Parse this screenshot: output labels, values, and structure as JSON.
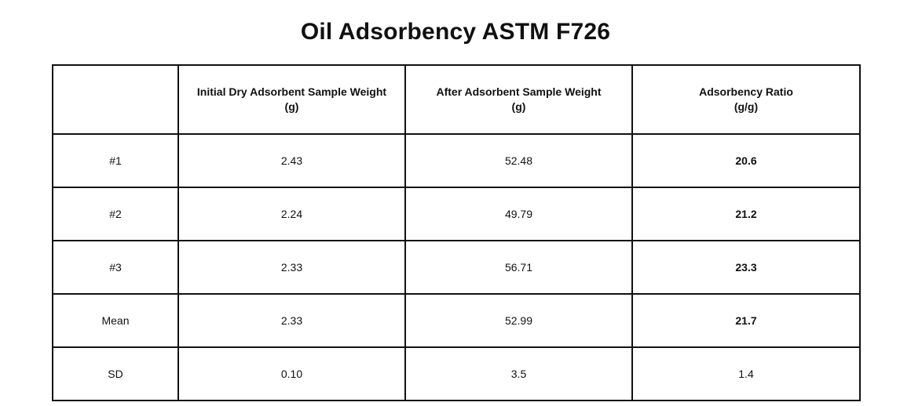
{
  "title": "Oil Adsorbency ASTM F726",
  "table": {
    "headers": [
      {
        "line1": "",
        "line2": ""
      },
      {
        "line1": "Initial Dry Adsorbent Sample Weight",
        "line2": "(g)"
      },
      {
        "line1": "After Adsorbent Sample Weight",
        "line2": "(g)"
      },
      {
        "line1": "Adsorbency Ratio",
        "line2": "(g/g)"
      }
    ],
    "rows": [
      {
        "label": "#1",
        "initial": "2.43",
        "after": "52.48",
        "ratio": "20.6"
      },
      {
        "label": "#2",
        "initial": "2.24",
        "after": "49.79",
        "ratio": "21.2"
      },
      {
        "label": "#3",
        "initial": "2.33",
        "after": "56.71",
        "ratio": "23.3"
      },
      {
        "label": "Mean",
        "initial": "2.33",
        "after": "52.99",
        "ratio": "21.7"
      },
      {
        "label": "SD",
        "initial": "0.10",
        "after": "3.5",
        "ratio": "1.4"
      }
    ]
  }
}
